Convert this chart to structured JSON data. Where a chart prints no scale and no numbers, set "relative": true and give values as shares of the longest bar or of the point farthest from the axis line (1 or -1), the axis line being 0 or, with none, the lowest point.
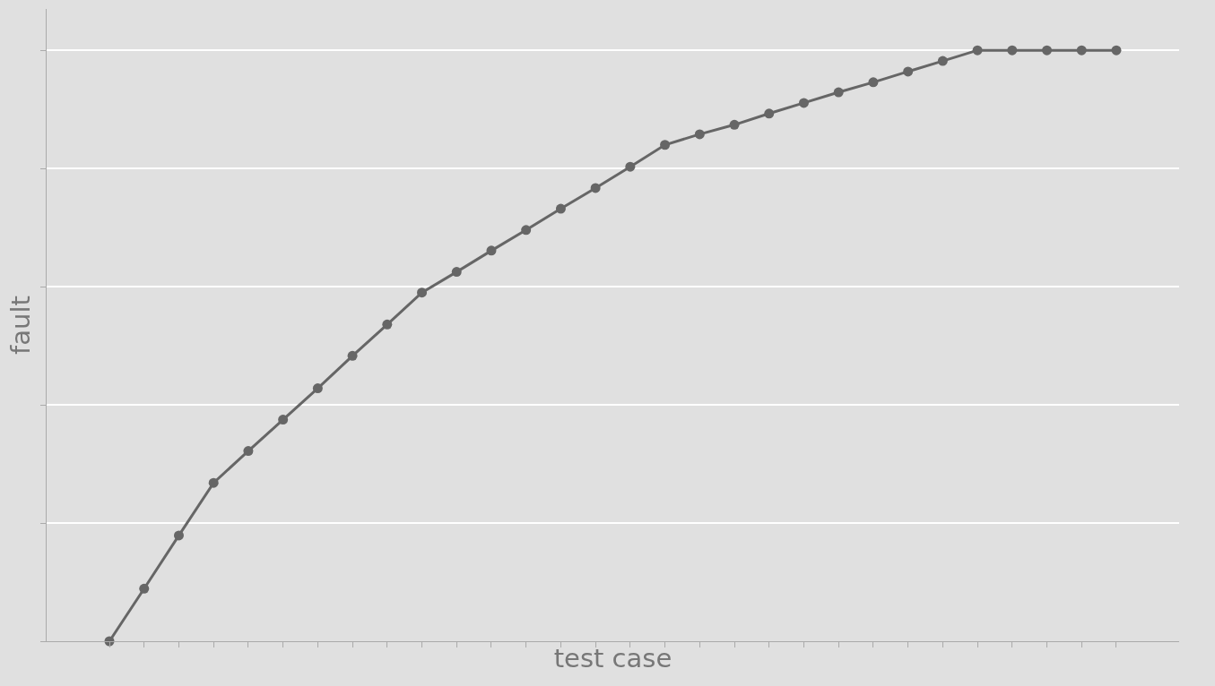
{
  "chart_data": {
    "type": "line",
    "xlabel": "test case",
    "ylabel": "fault",
    "relative": true,
    "grid": "y",
    "marker": "circle",
    "line_style": "solid",
    "legend": false,
    "categories": [
      null,
      null,
      null,
      null,
      null,
      null,
      null,
      null,
      null,
      null,
      null,
      null,
      null,
      null,
      null,
      null,
      null,
      null,
      null,
      null,
      null,
      null,
      null,
      null,
      null,
      null,
      null,
      null,
      null,
      null
    ],
    "series": [
      {
        "color": "#666666",
        "values": [
          0,
          0.089,
          0.179,
          0.268,
          0.322,
          0.375,
          0.428,
          0.483,
          0.536,
          0.59,
          0.625,
          0.661,
          0.696,
          0.732,
          0.767,
          0.803,
          0.84,
          0.858,
          0.874,
          0.893,
          0.911,
          0.929,
          0.946,
          0.964,
          0.982,
          1,
          1,
          1,
          1,
          1
        ]
      }
    ]
  }
}
